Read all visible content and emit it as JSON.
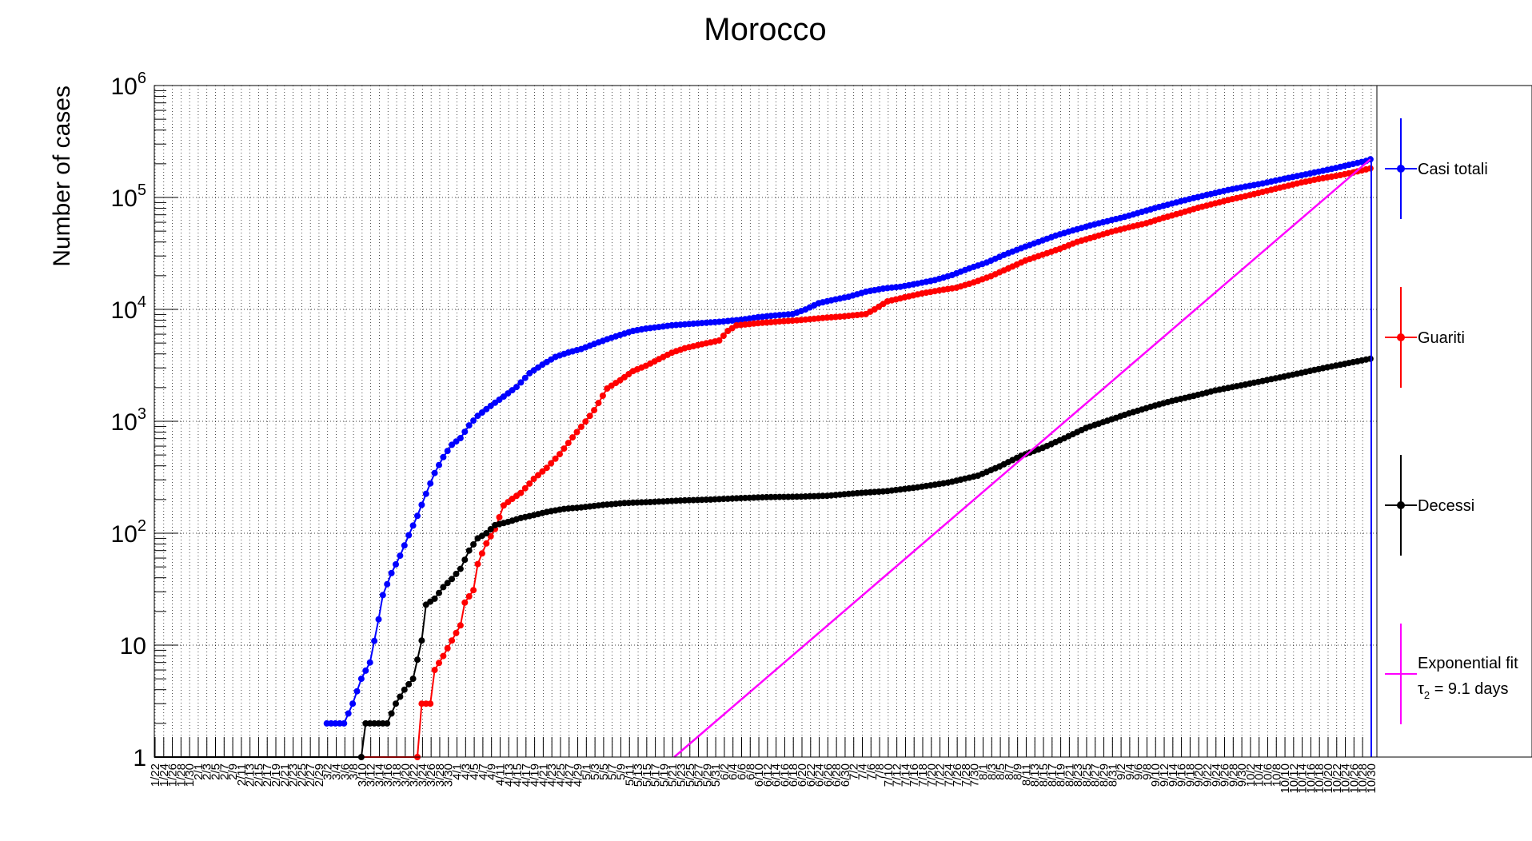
{
  "chart_data": {
    "type": "line",
    "title": "Morocco",
    "ylabel": "Number of cases",
    "xlabel": "",
    "yscale": "log",
    "ylim": [
      1,
      1000000
    ],
    "ytick_labels": [
      "1",
      "10",
      "10^2",
      "10^3",
      "10^4",
      "10^5",
      "10^6"
    ],
    "x_start": "2020-01-22",
    "x_end": "2020-10-30",
    "x_tick_step_days": 2,
    "grid": true,
    "legend_placement": "right",
    "series": [
      {
        "name": "Casi totali",
        "color": "#0000ff",
        "points": [
          [
            "2020-03-02",
            2
          ],
          [
            "2020-03-06",
            2
          ],
          [
            "2020-03-08",
            3
          ],
          [
            "2020-03-10",
            5
          ],
          [
            "2020-03-12",
            7
          ],
          [
            "2020-03-14",
            17
          ],
          [
            "2020-03-15",
            28
          ],
          [
            "2020-03-17",
            44
          ],
          [
            "2020-03-19",
            63
          ],
          [
            "2020-03-21",
            96
          ],
          [
            "2020-03-23",
            143
          ],
          [
            "2020-03-25",
            225
          ],
          [
            "2020-03-27",
            345
          ],
          [
            "2020-03-29",
            479
          ],
          [
            "2020-03-31",
            617
          ],
          [
            "2020-04-02",
            708
          ],
          [
            "2020-04-04",
            919
          ],
          [
            "2020-04-06",
            1120
          ],
          [
            "2020-04-09",
            1374
          ],
          [
            "2020-04-12",
            1661
          ],
          [
            "2020-04-15",
            2024
          ],
          [
            "2020-04-18",
            2685
          ],
          [
            "2020-04-21",
            3209
          ],
          [
            "2020-04-24",
            3758
          ],
          [
            "2020-04-27",
            4120
          ],
          [
            "2020-04-30",
            4423
          ],
          [
            "2020-05-03",
            4903
          ],
          [
            "2020-05-06",
            5408
          ],
          [
            "2020-05-09",
            5910
          ],
          [
            "2020-05-12",
            6418
          ],
          [
            "2020-05-15",
            6741
          ],
          [
            "2020-05-18",
            6952
          ],
          [
            "2020-05-21",
            7214
          ],
          [
            "2020-05-25",
            7406
          ],
          [
            "2020-05-29",
            7601
          ],
          [
            "2020-06-02",
            7807
          ],
          [
            "2020-06-06",
            8071
          ],
          [
            "2020-06-10",
            8508
          ],
          [
            "2020-06-14",
            8832
          ],
          [
            "2020-06-18",
            9074
          ],
          [
            "2020-06-21",
            9977
          ],
          [
            "2020-06-24",
            11338
          ],
          [
            "2020-06-27",
            12052
          ],
          [
            "2020-07-01",
            12969
          ],
          [
            "2020-07-05",
            14379
          ],
          [
            "2020-07-09",
            15328
          ],
          [
            "2020-07-13",
            15936
          ],
          [
            "2020-07-17",
            17015
          ],
          [
            "2020-07-21",
            18264
          ],
          [
            "2020-07-25",
            20278
          ],
          [
            "2020-07-29",
            23259
          ],
          [
            "2020-08-02",
            26196
          ],
          [
            "2020-08-06",
            30662
          ],
          [
            "2020-08-10",
            35195
          ],
          [
            "2020-08-14",
            40023
          ],
          [
            "2020-08-18",
            45568
          ],
          [
            "2020-08-22",
            50812
          ],
          [
            "2020-08-26",
            56097
          ],
          [
            "2020-08-30",
            61399
          ],
          [
            "2020-09-03",
            67015
          ],
          [
            "2020-09-07",
            74339
          ],
          [
            "2020-09-11",
            82197
          ],
          [
            "2020-09-15",
            90324
          ],
          [
            "2020-09-19",
            98816
          ],
          [
            "2020-09-23",
            107380
          ],
          [
            "2020-09-27",
            116709
          ],
          [
            "2020-10-01",
            124978
          ],
          [
            "2020-10-05",
            133272
          ],
          [
            "2020-10-09",
            144227
          ],
          [
            "2020-10-13",
            155106
          ],
          [
            "2020-10-17",
            166960
          ],
          [
            "2020-10-21",
            179861
          ],
          [
            "2020-10-25",
            195167
          ],
          [
            "2020-10-29",
            212038
          ],
          [
            "2020-10-30",
            219084
          ]
        ]
      },
      {
        "name": "Guariti",
        "color": "#ff0000",
        "points": [
          [
            "2020-03-23",
            1
          ],
          [
            "2020-03-24",
            3
          ],
          [
            "2020-03-26",
            3
          ],
          [
            "2020-03-27",
            6
          ],
          [
            "2020-03-29",
            8
          ],
          [
            "2020-03-31",
            11
          ],
          [
            "2020-04-02",
            15
          ],
          [
            "2020-04-03",
            24
          ],
          [
            "2020-04-05",
            31
          ],
          [
            "2020-04-06",
            53
          ],
          [
            "2020-04-07",
            66
          ],
          [
            "2020-04-08",
            81
          ],
          [
            "2020-04-10",
            109
          ],
          [
            "2020-04-12",
            177
          ],
          [
            "2020-04-14",
            203
          ],
          [
            "2020-04-16",
            229
          ],
          [
            "2020-04-19",
            306
          ],
          [
            "2020-04-22",
            384
          ],
          [
            "2020-04-25",
            509
          ],
          [
            "2020-04-28",
            718
          ],
          [
            "2020-05-01",
            995
          ],
          [
            "2020-05-03",
            1256
          ],
          [
            "2020-05-06",
            1964
          ],
          [
            "2020-05-09",
            2324
          ],
          [
            "2020-05-12",
            2811
          ],
          [
            "2020-05-15",
            3131
          ],
          [
            "2020-05-18",
            3588
          ],
          [
            "2020-05-21",
            4098
          ],
          [
            "2020-05-24",
            4499
          ],
          [
            "2020-05-28",
            4881
          ],
          [
            "2020-06-01",
            5271
          ],
          [
            "2020-06-03",
            6410
          ],
          [
            "2020-06-05",
            7195
          ],
          [
            "2020-06-10",
            7529
          ],
          [
            "2020-06-15",
            7796
          ],
          [
            "2020-06-20",
            8030
          ],
          [
            "2020-06-25",
            8380
          ],
          [
            "2020-06-30",
            8672
          ],
          [
            "2020-07-05",
            9081
          ],
          [
            "2020-07-07",
            10000
          ],
          [
            "2020-07-10",
            11785
          ],
          [
            "2020-07-14",
            12819
          ],
          [
            "2020-07-18",
            13863
          ],
          [
            "2020-07-22",
            14796
          ],
          [
            "2020-07-26",
            15620
          ],
          [
            "2020-07-30",
            17400
          ],
          [
            "2020-08-03",
            19800
          ],
          [
            "2020-08-07",
            23200
          ],
          [
            "2020-08-11",
            27300
          ],
          [
            "2020-08-15",
            30800
          ],
          [
            "2020-08-19",
            34800
          ],
          [
            "2020-08-23",
            40100
          ],
          [
            "2020-08-27",
            44400
          ],
          [
            "2020-08-31",
            49500
          ],
          [
            "2020-09-04",
            54100
          ],
          [
            "2020-09-08",
            58800
          ],
          [
            "2020-09-12",
            65700
          ],
          [
            "2020-09-16",
            72700
          ],
          [
            "2020-09-20",
            80700
          ],
          [
            "2020-09-24",
            88500
          ],
          [
            "2020-09-28",
            96800
          ],
          [
            "2020-10-02",
            104800
          ],
          [
            "2020-10-06",
            114600
          ],
          [
            "2020-10-10",
            124800
          ],
          [
            "2020-10-14",
            135900
          ],
          [
            "2020-10-18",
            146500
          ],
          [
            "2020-10-22",
            155700
          ],
          [
            "2020-10-26",
            167300
          ],
          [
            "2020-10-30",
            182000
          ]
        ]
      },
      {
        "name": "Decessi",
        "color": "#000000",
        "points": [
          [
            "2020-03-10",
            1
          ],
          [
            "2020-03-11",
            2
          ],
          [
            "2020-03-16",
            2
          ],
          [
            "2020-03-18",
            3
          ],
          [
            "2020-03-20",
            4
          ],
          [
            "2020-03-22",
            5
          ],
          [
            "2020-03-24",
            11
          ],
          [
            "2020-03-25",
            23
          ],
          [
            "2020-03-27",
            26
          ],
          [
            "2020-03-29",
            33
          ],
          [
            "2020-03-31",
            39
          ],
          [
            "2020-04-02",
            48
          ],
          [
            "2020-04-04",
            70
          ],
          [
            "2020-04-06",
            90
          ],
          [
            "2020-04-08",
            100
          ],
          [
            "2020-04-10",
            118
          ],
          [
            "2020-04-13",
            126
          ],
          [
            "2020-04-16",
            137
          ],
          [
            "2020-04-19",
            145
          ],
          [
            "2020-04-22",
            155
          ],
          [
            "2020-04-26",
            165
          ],
          [
            "2020-04-30",
            170
          ],
          [
            "2020-05-05",
            179
          ],
          [
            "2020-05-10",
            186
          ],
          [
            "2020-05-16",
            190
          ],
          [
            "2020-05-23",
            196
          ],
          [
            "2020-05-30",
            200
          ],
          [
            "2020-06-05",
            205
          ],
          [
            "2020-06-12",
            210
          ],
          [
            "2020-06-19",
            212
          ],
          [
            "2020-06-26",
            216
          ],
          [
            "2020-07-03",
            228
          ],
          [
            "2020-07-10",
            238
          ],
          [
            "2020-07-17",
            257
          ],
          [
            "2020-07-24",
            283
          ],
          [
            "2020-07-31",
            327
          ],
          [
            "2020-08-05",
            395
          ],
          [
            "2020-08-10",
            492
          ],
          [
            "2020-08-15",
            578
          ],
          [
            "2020-08-20",
            706
          ],
          [
            "2020-08-25",
            871
          ],
          [
            "2020-08-30",
            1011
          ],
          [
            "2020-09-04",
            1176
          ],
          [
            "2020-09-09",
            1346
          ],
          [
            "2020-09-14",
            1522
          ],
          [
            "2020-09-19",
            1684
          ],
          [
            "2020-09-24",
            1886
          ],
          [
            "2020-09-29",
            2057
          ],
          [
            "2020-10-04",
            2251
          ],
          [
            "2020-10-09",
            2467
          ],
          [
            "2020-10-14",
            2710
          ],
          [
            "2020-10-19",
            2986
          ],
          [
            "2020-10-24",
            3256
          ],
          [
            "2020-10-30",
            3625
          ]
        ]
      },
      {
        "name": "Exponential fit",
        "label_line2": "τ",
        "label_sub": "2",
        "label_rest": " = 9.1 days",
        "color": "#ff00ff",
        "fit": {
          "doubling_days": 9.1,
          "x_from": "2020-05-16",
          "x_to": "2020-10-30",
          "y_at_end": 219084
        }
      }
    ]
  }
}
